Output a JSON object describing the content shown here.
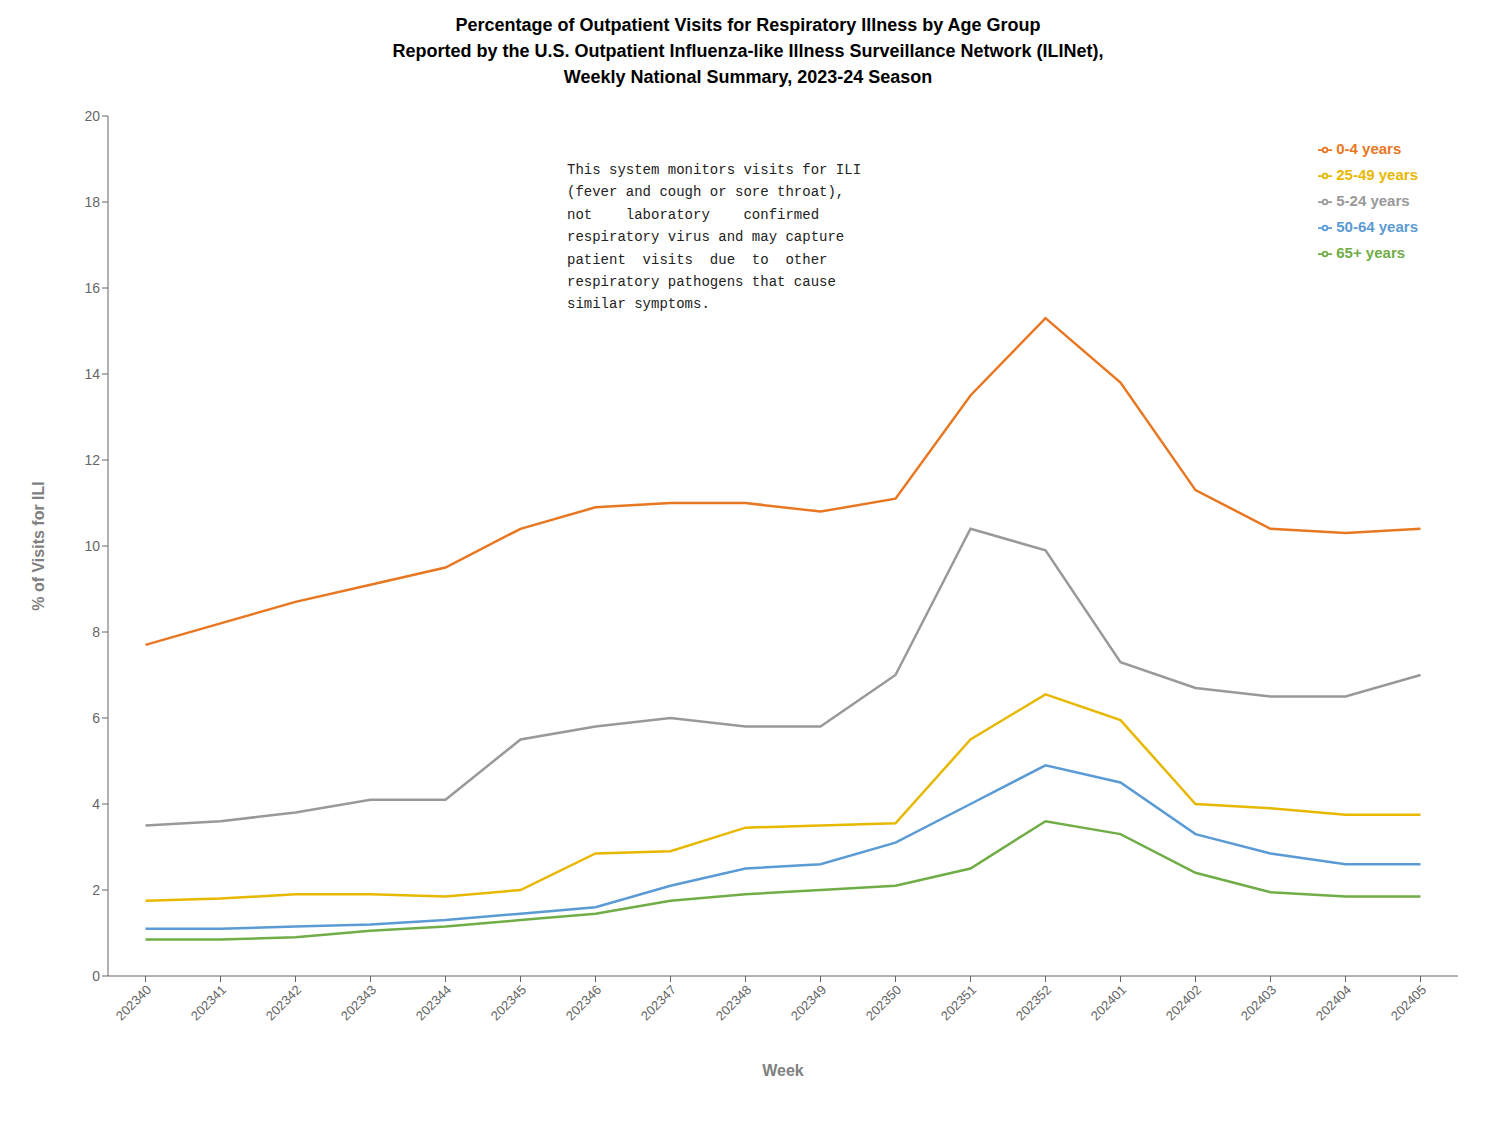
{
  "chart_data": {
    "type": "line",
    "title": "Percentage of Outpatient Visits for Respiratory Illness by Age Group\nReported by the U.S. Outpatient Influenza-like Illness Surveillance Network (ILINet),\nWeekly National Summary, 2023-24 Season",
    "x_label": "Week",
    "y_label": "% of Visits for ILI",
    "categories": [
      "202340",
      "202341",
      "202342",
      "202343",
      "202344",
      "202345",
      "202346",
      "202347",
      "202348",
      "202349",
      "202350",
      "202351",
      "202352",
      "202401",
      "202402",
      "202403",
      "202404",
      "202405"
    ],
    "series": [
      {
        "name": "0-4 years",
        "color": "#E87722",
        "values": [
          7.7,
          8.2,
          8.7,
          9.1,
          9.5,
          10.4,
          10.9,
          11.0,
          11.0,
          10.8,
          11.1,
          13.5,
          15.3,
          13.8,
          11.3,
          10.4,
          10.3,
          10.4
        ]
      },
      {
        "name": "5-24 years",
        "color": "#999999",
        "values": [
          3.5,
          3.6,
          3.8,
          4.1,
          4.1,
          5.5,
          5.8,
          6.0,
          5.8,
          5.8,
          7.0,
          10.4,
          9.9,
          7.3,
          6.7,
          6.5,
          6.5,
          7.0
        ]
      },
      {
        "name": "25-49 years",
        "color": "#E8B800",
        "values": [
          1.75,
          1.8,
          1.9,
          1.9,
          1.85,
          2.0,
          2.85,
          2.9,
          3.45,
          3.5,
          3.55,
          5.5,
          6.55,
          5.95,
          4.0,
          3.9,
          3.75,
          3.75
        ]
      },
      {
        "name": "50-64 years",
        "color": "#5B9BD5",
        "values": [
          1.1,
          1.1,
          1.15,
          1.2,
          1.3,
          1.45,
          1.6,
          2.1,
          2.5,
          2.6,
          3.1,
          4.0,
          4.9,
          4.5,
          3.3,
          2.85,
          2.6,
          2.6
        ]
      },
      {
        "name": "65+ years",
        "color": "#70AD47",
        "values": [
          0.85,
          0.85,
          0.9,
          1.05,
          1.15,
          1.3,
          1.45,
          1.75,
          1.9,
          2.0,
          2.1,
          2.5,
          3.6,
          3.3,
          2.4,
          1.95,
          1.85,
          1.85
        ]
      }
    ],
    "ylim": [
      0,
      20
    ],
    "yticks": [
      0,
      2,
      4,
      6,
      8,
      10,
      12,
      14,
      16,
      18,
      20
    ],
    "annotations": [
      "This system monitors visits for ILI\n(fever and cough or sore throat),\nnot    laboratory    confirmed\nrespiratory virus and may capture\npatient  visits  due  to  other\nrespiratory pathogens that cause\nsimilar symptoms."
    ],
    "grid": false,
    "legend": "upper right"
  }
}
